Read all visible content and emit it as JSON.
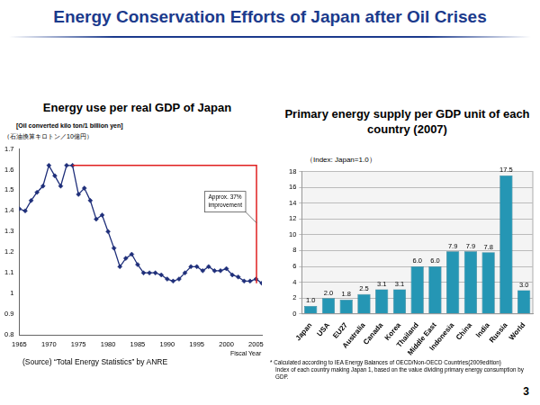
{
  "slide_title": "Energy Conservation Efforts of Japan after Oil Crises",
  "page_number": 3,
  "chart_data": [
    {
      "type": "line",
      "title": "Energy use per real GDP of Japan",
      "y_label": "[Oil converted kilo ton/1 billion yen]",
      "subtitle": "（石油換算キロトン／10億円）",
      "x_label": "Fiscal Year",
      "annotations": [
        "Approx. 37% improvement"
      ],
      "source": "(Source) “Total Energy Statistics” by ANRE",
      "x": [
        1965,
        1966,
        1967,
        1968,
        1969,
        1970,
        1971,
        1972,
        1973,
        1974,
        1975,
        1976,
        1977,
        1978,
        1979,
        1980,
        1981,
        1982,
        1983,
        1984,
        1985,
        1986,
        1987,
        1988,
        1989,
        1990,
        1991,
        1992,
        1993,
        1994,
        1995,
        1996,
        1997,
        1998,
        1999,
        2000,
        2001,
        2002,
        2003,
        2004,
        2005,
        2006
      ],
      "values": [
        1.41,
        1.4,
        1.45,
        1.49,
        1.52,
        1.62,
        1.57,
        1.52,
        1.62,
        1.62,
        1.48,
        1.51,
        1.45,
        1.36,
        1.38,
        1.3,
        1.22,
        1.13,
        1.17,
        1.19,
        1.14,
        1.1,
        1.1,
        1.1,
        1.09,
        1.07,
        1.06,
        1.07,
        1.1,
        1.13,
        1.13,
        1.11,
        1.13,
        1.11,
        1.11,
        1.12,
        1.09,
        1.08,
        1.06,
        1.06,
        1.07,
        1.05
      ],
      "color": "#1f2f7a",
      "marker": "diamond",
      "xlim": [
        1965,
        2006
      ],
      "xticks": [
        1965,
        1970,
        1975,
        1980,
        1985,
        1990,
        1995,
        2000,
        2005
      ],
      "ylim": [
        0.8,
        1.7
      ],
      "yticks": [
        0.8,
        0.9,
        1,
        1.1,
        1.2,
        1.3,
        1.4,
        1.5,
        1.6,
        1.7
      ],
      "grid": false
    },
    {
      "type": "bar",
      "title": "Primary energy supply per GDP unit of each country (2007)",
      "subtitle": "（Index: Japan=1.0）",
      "notes": [
        "* Calculated according to IEA Energy Balances of OECD/Non-OECD Countries(2009edition)",
        "Index of each country making Japan 1, based on the value dividing primary energy consumption by GDP."
      ],
      "categories": [
        "Japan",
        "USA",
        "EU27",
        "Australia",
        "Canada",
        "Korea",
        "Thailand",
        "Middle East",
        "Indonesia",
        "China",
        "India",
        "Russia",
        "World"
      ],
      "values": [
        1.0,
        2.0,
        1.8,
        2.5,
        3.1,
        3.1,
        6.0,
        6.0,
        7.9,
        7.9,
        7.8,
        17.5,
        3.0
      ],
      "value_labels": [
        "1.0",
        "2.0",
        "1.8",
        "2.5",
        "3.1",
        "3.1",
        "6.0",
        "6.0",
        "7.9",
        "7.9",
        "7.8",
        "17.5",
        "3.0"
      ],
      "color": "#2596b4",
      "data_labels": true,
      "ylim": [
        0,
        18
      ],
      "yticks": [
        0,
        2,
        4,
        6,
        8,
        10,
        12,
        14,
        16,
        18
      ],
      "grid": true
    }
  ]
}
